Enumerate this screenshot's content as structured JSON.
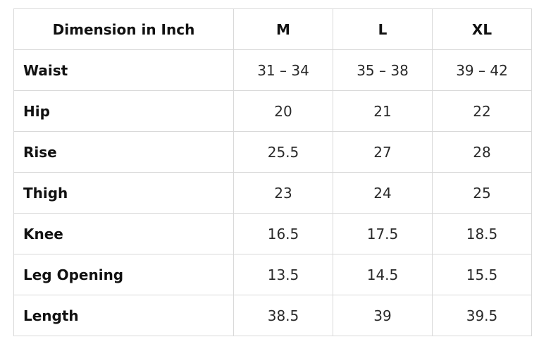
{
  "table": {
    "header": {
      "dimension_label": "Dimension in Inch",
      "sizes": [
        "M",
        "L",
        "XL"
      ]
    },
    "rows": [
      {
        "label": "Waist",
        "values": [
          "31 – 34",
          "35 – 38",
          "39 – 42"
        ]
      },
      {
        "label": "Hip",
        "values": [
          "20",
          "21",
          "22"
        ]
      },
      {
        "label": "Rise",
        "values": [
          "25.5",
          "27",
          "28"
        ]
      },
      {
        "label": "Thigh",
        "values": [
          "23",
          "24",
          "25"
        ]
      },
      {
        "label": "Knee",
        "values": [
          "16.5",
          "17.5",
          "18.5"
        ]
      },
      {
        "label": "Leg Opening",
        "values": [
          "13.5",
          "14.5",
          "15.5"
        ]
      },
      {
        "label": "Length",
        "values": [
          "38.5",
          "39",
          "39.5"
        ]
      }
    ]
  }
}
